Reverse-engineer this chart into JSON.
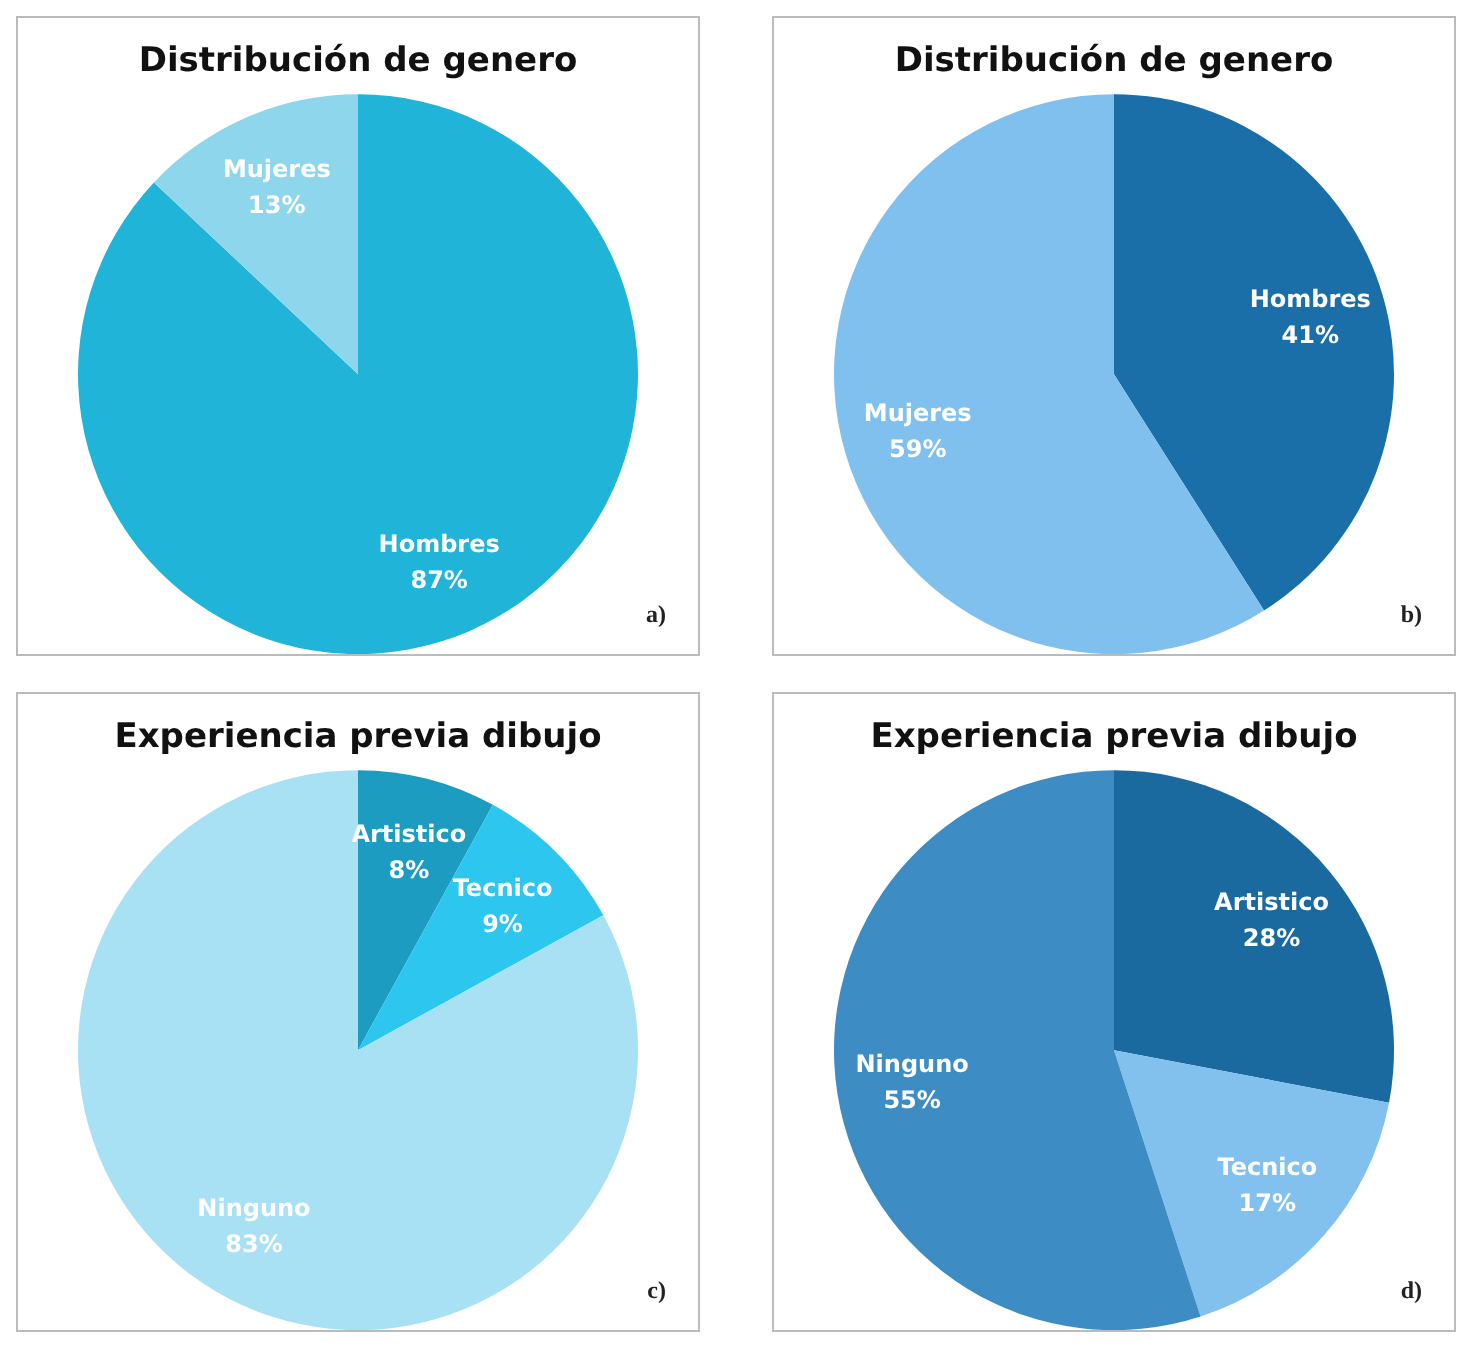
{
  "chart_data": [
    {
      "type": "pie",
      "title": "Distribución de genero",
      "categories": [
        "Hombres",
        "Mujeres"
      ],
      "values": [
        87,
        13
      ],
      "value_labels": [
        "87%",
        "13%"
      ],
      "colors": [
        "#1fb4d8",
        "#8ed6ec"
      ],
      "legend": false,
      "annotations": [
        "a)"
      ]
    },
    {
      "type": "pie",
      "title": "Distribución de genero",
      "categories": [
        "Hombres",
        "Mujeres"
      ],
      "values": [
        41,
        59
      ],
      "value_labels": [
        "41%",
        "59%"
      ],
      "colors": [
        "#1a6fa8",
        "#7fc0ee"
      ],
      "legend": false,
      "annotations": [
        "b)"
      ]
    },
    {
      "type": "pie",
      "title": "Experiencia previa dibujo",
      "categories": [
        "Artistico",
        "Tecnico",
        "Ninguno"
      ],
      "values": [
        8,
        9,
        83
      ],
      "value_labels": [
        "8%",
        "9%",
        "83%"
      ],
      "colors": [
        "#1b9cc0",
        "#2dc6ee",
        "#a8e0f4"
      ],
      "legend": false,
      "annotations": [
        "c)"
      ]
    },
    {
      "type": "pie",
      "title": "Experiencia previa dibujo",
      "categories": [
        "Artistico",
        "Tecnico",
        "Ninguno"
      ],
      "values": [
        28,
        17,
        55
      ],
      "value_labels": [
        "28%",
        "17%",
        "55%"
      ],
      "colors": [
        "#1a6aa0",
        "#82c0ee",
        "#3d8cc4"
      ],
      "legend": false,
      "annotations": [
        "d)"
      ]
    }
  ]
}
